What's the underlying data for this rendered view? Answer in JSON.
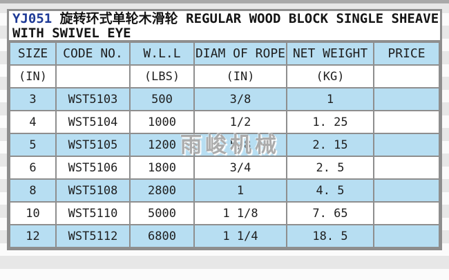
{
  "title": {
    "code": "YJ051",
    "chinese": "旋转环式单轮木滑轮",
    "english_line1": "REGULAR WOOD BLOCK SINGLE SHEAVE",
    "english_line2": "WITH SWIVEL EYE"
  },
  "watermark": "雨峻机械",
  "chart_data": {
    "type": "table",
    "title": "YJ051 旋转环式单轮木滑轮 REGULAR WOOD BLOCK SINGLE SHEAVE WITH SWIVEL EYE",
    "columns": [
      "SIZE",
      "CODE NO.",
      "W.L.L",
      "DIAM OF ROPE",
      "NET WEIGHT",
      "PRICE"
    ],
    "units": [
      "(IN)",
      "",
      "(LBS)",
      "(IN)",
      "(KG)",
      ""
    ],
    "rows": [
      [
        "3",
        "WST5103",
        "500",
        "3/8",
        "1",
        ""
      ],
      [
        "4",
        "WST5104",
        "1000",
        "1/2",
        "1. 25",
        ""
      ],
      [
        "5",
        "WST5105",
        "1200",
        "5/8",
        "2. 15",
        ""
      ],
      [
        "6",
        "WST5106",
        "1800",
        "3/4",
        "2. 5",
        ""
      ],
      [
        "8",
        "WST5108",
        "2800",
        "1",
        "4. 5",
        ""
      ],
      [
        "10",
        "WST5110",
        "5000",
        "1 1/8",
        "7. 65",
        ""
      ],
      [
        "12",
        "WST5112",
        "6800",
        "1 1/4",
        "18. 5",
        ""
      ]
    ]
  },
  "colors": {
    "row_blue": "#b7def2",
    "row_white": "#ffffff",
    "border_gray": "#8e8e8e",
    "title_code_blue": "#1e3a96",
    "text_black": "#1e1e1e",
    "watermark_gray": "#9e9e9e",
    "page_stripe_gray": "#e7e7e7",
    "top_bar_gray": "#a9a9a9"
  }
}
